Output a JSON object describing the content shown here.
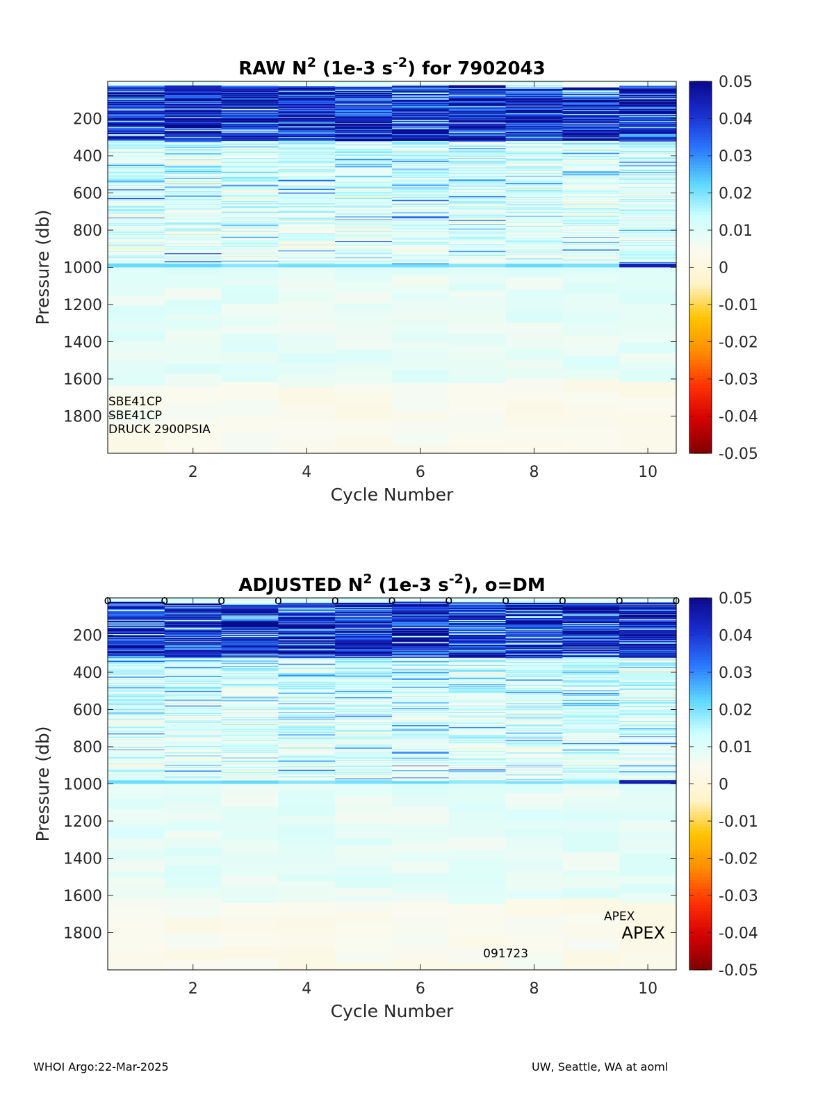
{
  "colors": {
    "colormap": [
      "#7f0000",
      "#d40000",
      "#ff3300",
      "#ff8c00",
      "#ffc400",
      "#fff3c8",
      "#fafaf0",
      "#ccffff",
      "#5ad6ff",
      "#2a78ff",
      "#1a2fd0",
      "#0a0a8c"
    ],
    "axis": "#262626",
    "frame": "#000000"
  },
  "chart_data": [
    {
      "type": "heatmap",
      "title": "RAW N² (1e-3 s⁻²) for 7902043",
      "title_parts": {
        "pre": "RAW N",
        "sup1": "2",
        "mid": " (1e-3 s",
        "sup2": "-2",
        "post": ") for 7902043"
      },
      "xlabel": "Cycle Number",
      "ylabel": "Pressure (db)",
      "x": [
        1,
        2,
        3,
        4,
        5,
        6,
        7,
        8,
        9,
        10
      ],
      "xlim": [
        0.5,
        10.5
      ],
      "xticks": [
        "2",
        "4",
        "6",
        "8",
        "10"
      ],
      "ylim": [
        0,
        2000
      ],
      "y_reversed": true,
      "yticks": [
        "200",
        "400",
        "600",
        "800",
        "1000",
        "1200",
        "1400",
        "1600",
        "1800"
      ],
      "clim": [
        -0.05,
        0.05
      ],
      "colorbar_ticks": [
        "0.05",
        "0.04",
        "0.03",
        "0.02",
        "0.01",
        "0",
        "-0.01",
        "-0.02",
        "-0.03",
        "-0.04",
        "-0.05"
      ],
      "annotations": [
        {
          "text": "SBE41CP",
          "cycle": 0.5,
          "pressure": 1720
        },
        {
          "text": "SBE41CP",
          "cycle": 0.5,
          "pressure": 1795
        },
        {
          "text": "DRUCK 2900PSIA",
          "cycle": 0.5,
          "pressure": 1870
        }
      ],
      "dm_markers": [],
      "strong_bands": [
        {
          "cycle": 10,
          "pmin": 980,
          "pmax": 1000,
          "value": 0.045
        }
      ]
    },
    {
      "type": "heatmap",
      "title": "ADJUSTED N² (1e-3 s⁻²), o=DM",
      "title_parts": {
        "pre": "ADJUSTED N",
        "sup1": "2",
        "mid": " (1e-3 s",
        "sup2": "-2",
        "post": "), o=DM"
      },
      "xlabel": "Cycle Number",
      "ylabel": "Pressure (db)",
      "x": [
        1,
        2,
        3,
        4,
        5,
        6,
        7,
        8,
        9,
        10
      ],
      "xlim": [
        0.5,
        10.5
      ],
      "xticks": [
        "2",
        "4",
        "6",
        "8",
        "10"
      ],
      "ylim": [
        0,
        2000
      ],
      "y_reversed": true,
      "yticks": [
        "200",
        "400",
        "600",
        "800",
        "1000",
        "1200",
        "1400",
        "1600",
        "1800"
      ],
      "clim": [
        -0.05,
        0.05
      ],
      "colorbar_ticks": [
        "0.05",
        "0.04",
        "0.03",
        "0.02",
        "0.01",
        "0",
        "-0.01",
        "-0.02",
        "-0.03",
        "-0.04",
        "-0.05"
      ],
      "annotations": [
        {
          "text": "APEX",
          "cycle": 9.5,
          "pressure": 1710,
          "size": "small"
        },
        {
          "text": "APEX",
          "cycle": 10.5,
          "pressure": 1810,
          "size": "large"
        },
        {
          "text": "091723",
          "cycle": 7.5,
          "pressure": 1910,
          "size": "small"
        }
      ],
      "dm_markers": {
        "symbol": "o",
        "cycles": [
          0.5,
          1.5,
          2.5,
          3.5,
          4.5,
          5.5,
          6.5,
          7.5,
          8.5,
          9.5,
          10.5
        ],
        "pressure": 0
      },
      "strong_bands": [
        {
          "cycle": 10,
          "pmin": 980,
          "pmax": 1000,
          "value": 0.045
        }
      ]
    }
  ],
  "footer": {
    "left": "WHOI Argo:22-Mar-2025",
    "right": "UW, Seattle, WA at aoml"
  }
}
